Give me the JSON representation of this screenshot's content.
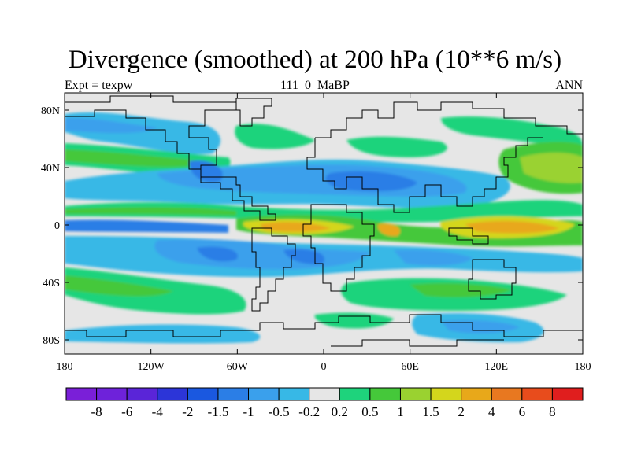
{
  "title": "Divergence (smoothed) at 200 hPa (10**6 m/s)",
  "subtitle_left": "Expt = texpw",
  "subtitle_center": "111_0_MaBP",
  "subtitle_right": "ANN",
  "x_ticks": [
    "180",
    "120W",
    "60W",
    "0",
    "60E",
    "120E",
    "180"
  ],
  "y_ticks": [
    "80N",
    "40N",
    "0",
    "40S",
    "80S"
  ],
  "colorbar": {
    "colors": [
      "#7a1fd8",
      "#6e22da",
      "#5a25d8",
      "#2c35d8",
      "#1a58e0",
      "#2b7ee6",
      "#3aa0ec",
      "#37b8e6",
      "#e6e6e6",
      "#1ed37c",
      "#45c83a",
      "#9ad230",
      "#d4d61c",
      "#e8a81a",
      "#e87820",
      "#e84c1c",
      "#e01e1e"
    ],
    "labels": [
      "-8",
      "-6",
      "-4",
      "-2",
      "-1.5",
      "-1",
      "-0.5",
      "-0.2",
      "0.2",
      "0.5",
      "1",
      "1.5",
      "2",
      "4",
      "6",
      "8"
    ]
  },
  "colors": {
    "background": "#e6e6e6",
    "weak_neg": "#37b8e6",
    "neg": "#3aa0ec",
    "strong_neg": "#2b7ee6",
    "weak_pos": "#1ed37c",
    "pos": "#45c83a",
    "pos2": "#9ad230",
    "pos3": "#d4d61c",
    "strong_pos": "#e8a81a",
    "very_strong_pos": "#e87820"
  }
}
